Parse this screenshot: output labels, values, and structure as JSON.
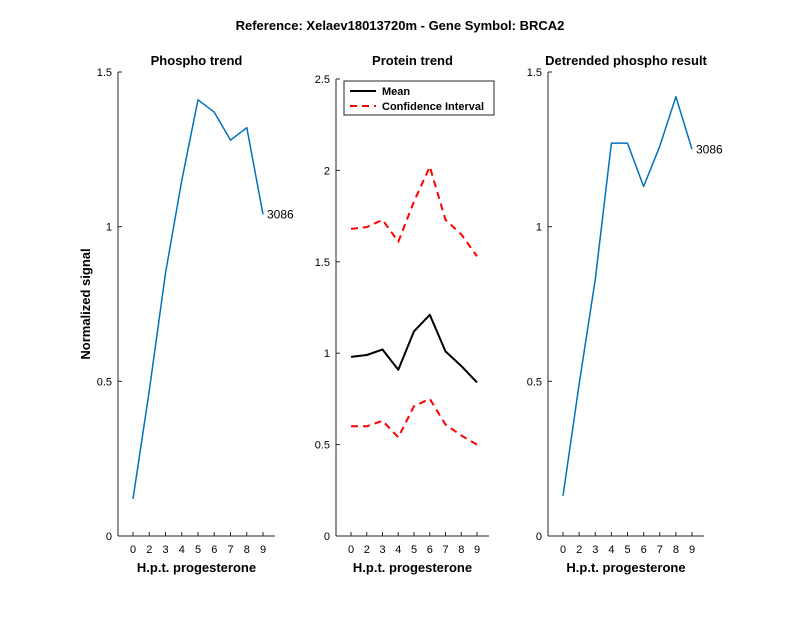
{
  "figure_title": "Reference:  Xelaev18013720m - Gene Symbol:  BRCA2",
  "colors": {
    "line_blue": "#0072BD",
    "mean": "#000000",
    "ci": "#FF0000"
  },
  "chart_data": [
    {
      "type": "line",
      "title": "Phospho trend",
      "xlabel": "H.p.t. progesterone",
      "ylabel": "Normalized signal",
      "categories": [
        "0",
        "2",
        "3",
        "4",
        "5",
        "6",
        "7",
        "8",
        "9"
      ],
      "ylim": [
        0,
        1.5
      ],
      "yticks": [
        0,
        0.5,
        1,
        1.5
      ],
      "ytick_labels": [
        "0",
        "0.5",
        "1",
        "1.5"
      ],
      "series": [
        {
          "name": "3086",
          "values": [
            0.12,
            0.47,
            0.85,
            1.15,
            1.41,
            1.37,
            1.28,
            1.32,
            1.04
          ]
        }
      ],
      "end_label": "3086"
    },
    {
      "type": "line",
      "title": "Protein trend",
      "xlabel": "H.p.t. progesterone",
      "categories": [
        "0",
        "2",
        "3",
        "4",
        "5",
        "6",
        "7",
        "8",
        "9"
      ],
      "ylim": [
        0,
        2.5
      ],
      "yticks": [
        0,
        0.5,
        1,
        1.5,
        2,
        2.5
      ],
      "ytick_labels": [
        "0",
        "0.5",
        "1",
        "1.5",
        "2",
        "2.5"
      ],
      "series": [
        {
          "name": "Mean",
          "style": "solid",
          "values": [
            0.98,
            0.99,
            1.02,
            0.91,
            1.12,
            1.21,
            1.01,
            0.93,
            0.84
          ]
        },
        {
          "name": "Confidence Interval",
          "style": "dashed",
          "values": [
            1.68,
            1.69,
            1.73,
            1.61,
            1.83,
            2.02,
            1.73,
            1.65,
            1.53
          ]
        },
        {
          "name": "Confidence Interval",
          "style": "dashed",
          "values": [
            0.6,
            0.6,
            0.63,
            0.54,
            0.71,
            0.75,
            0.61,
            0.55,
            0.5
          ]
        }
      ],
      "legend": {
        "location": "top-left",
        "entries": [
          "Mean",
          "Confidence Interval"
        ]
      }
    },
    {
      "type": "line",
      "title": "Detrended phospho result",
      "xlabel": "H.p.t. progesterone",
      "categories": [
        "0",
        "2",
        "3",
        "4",
        "5",
        "6",
        "7",
        "8",
        "9"
      ],
      "ylim": [
        0,
        1.5
      ],
      "yticks": [
        0,
        0.5,
        1,
        1.5
      ],
      "ytick_labels": [
        "0",
        "0.5",
        "1",
        "1.5"
      ],
      "series": [
        {
          "name": "3086",
          "values": [
            0.13,
            0.49,
            0.83,
            1.27,
            1.27,
            1.13,
            1.26,
            1.42,
            1.25
          ]
        }
      ],
      "end_label": "3086"
    }
  ]
}
